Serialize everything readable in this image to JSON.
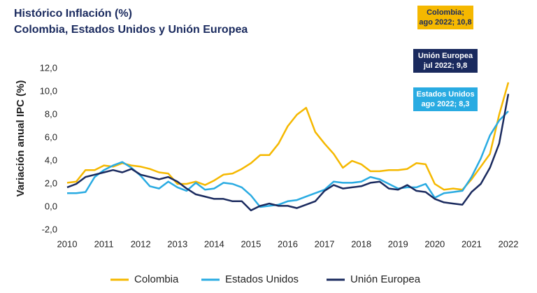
{
  "chart_data": {
    "type": "line",
    "title": "Histórico Inflación (%)",
    "subtitle": "Colombia, Estados Unidos y Unión Europea",
    "y_label": "Variación anual IPC (%)",
    "x": [
      2010,
      2010.25,
      2010.5,
      2010.75,
      2011,
      2011.25,
      2011.5,
      2011.75,
      2012,
      2012.25,
      2012.5,
      2012.75,
      2013,
      2013.25,
      2013.5,
      2013.75,
      2014,
      2014.25,
      2014.5,
      2014.75,
      2015,
      2015.25,
      2015.5,
      2015.75,
      2016,
      2016.25,
      2016.5,
      2016.75,
      2017,
      2017.25,
      2017.5,
      2017.75,
      2018,
      2018.25,
      2018.5,
      2018.75,
      2019,
      2019.25,
      2019.5,
      2019.75,
      2020,
      2020.25,
      2020.5,
      2020.75,
      2021,
      2021.25,
      2021.5,
      2021.75,
      2022
    ],
    "xlim": [
      2010,
      2022
    ],
    "xticks": [
      2010,
      2011,
      2012,
      2013,
      2014,
      2015,
      2016,
      2017,
      2018,
      2019,
      2020,
      2021,
      2022
    ],
    "ylim": [
      -2,
      12
    ],
    "yticks": [
      {
        "value": -2,
        "label": "-2,0"
      },
      {
        "value": 0,
        "label": "0,0"
      },
      {
        "value": 2,
        "label": "2,0"
      },
      {
        "value": 4,
        "label": "4,0"
      },
      {
        "value": 6,
        "label": "6,0"
      },
      {
        "value": 8,
        "label": "8,0"
      },
      {
        "value": 10,
        "label": "10,0"
      },
      {
        "value": 12,
        "label": "12,0"
      }
    ],
    "series": [
      {
        "name": "Colombia",
        "color": "#f5b800",
        "values": [
          2.1,
          2.2,
          3.2,
          3.2,
          3.6,
          3.5,
          3.8,
          3.6,
          3.5,
          3.3,
          3.0,
          2.9,
          2.0,
          2.0,
          2.2,
          1.9,
          2.3,
          2.8,
          2.9,
          3.3,
          3.8,
          4.5,
          4.5,
          5.5,
          7.0,
          8.0,
          8.6,
          6.5,
          5.5,
          4.6,
          3.4,
          4.0,
          3.7,
          3.1,
          3.1,
          3.2,
          3.2,
          3.3,
          3.8,
          3.7,
          2.0,
          1.5,
          1.6,
          1.5,
          2.4,
          3.5,
          4.6,
          8.0,
          10.8
        ]
      },
      {
        "name": "Estados Unidos",
        "color": "#29abe2",
        "values": [
          1.2,
          1.2,
          1.3,
          2.6,
          3.2,
          3.6,
          3.9,
          3.4,
          2.7,
          1.8,
          1.6,
          2.2,
          1.7,
          1.4,
          2.1,
          1.5,
          1.6,
          2.1,
          2.0,
          1.7,
          1.0,
          0.0,
          0.1,
          0.2,
          0.5,
          0.6,
          0.9,
          1.2,
          1.5,
          2.2,
          2.1,
          2.1,
          2.2,
          2.6,
          2.4,
          2.0,
          1.6,
          1.7,
          1.7,
          2.0,
          0.8,
          1.2,
          1.3,
          1.4,
          2.6,
          4.2,
          6.2,
          7.5,
          8.3
        ]
      },
      {
        "name": "Unión Europea",
        "color": "#1a2a5e",
        "values": [
          1.7,
          2.0,
          2.6,
          2.8,
          3.0,
          3.2,
          3.0,
          3.3,
          2.8,
          2.6,
          2.4,
          2.6,
          2.2,
          1.6,
          1.1,
          0.9,
          0.7,
          0.7,
          0.5,
          0.5,
          -0.3,
          0.1,
          0.3,
          0.1,
          0.1,
          -0.1,
          0.2,
          0.5,
          1.4,
          1.9,
          1.6,
          1.7,
          1.8,
          2.1,
          2.2,
          1.6,
          1.5,
          1.9,
          1.4,
          1.3,
          0.7,
          0.4,
          0.3,
          0.2,
          1.3,
          2.0,
          3.4,
          5.5,
          9.8
        ]
      }
    ],
    "annotations": [
      {
        "lines": [
          "Colombia;",
          "ago 2022; 10,8"
        ],
        "color": "#f5b800",
        "text_color": "#1a2a5e"
      },
      {
        "lines": [
          "Unión Europea",
          "jul 2022; 9,8"
        ],
        "color": "#1a2a5e",
        "text_color": "#ffffff"
      },
      {
        "lines": [
          "Estados Unidos",
          "ago 2022; 8,3"
        ],
        "color": "#29abe2",
        "text_color": "#ffffff"
      }
    ]
  }
}
